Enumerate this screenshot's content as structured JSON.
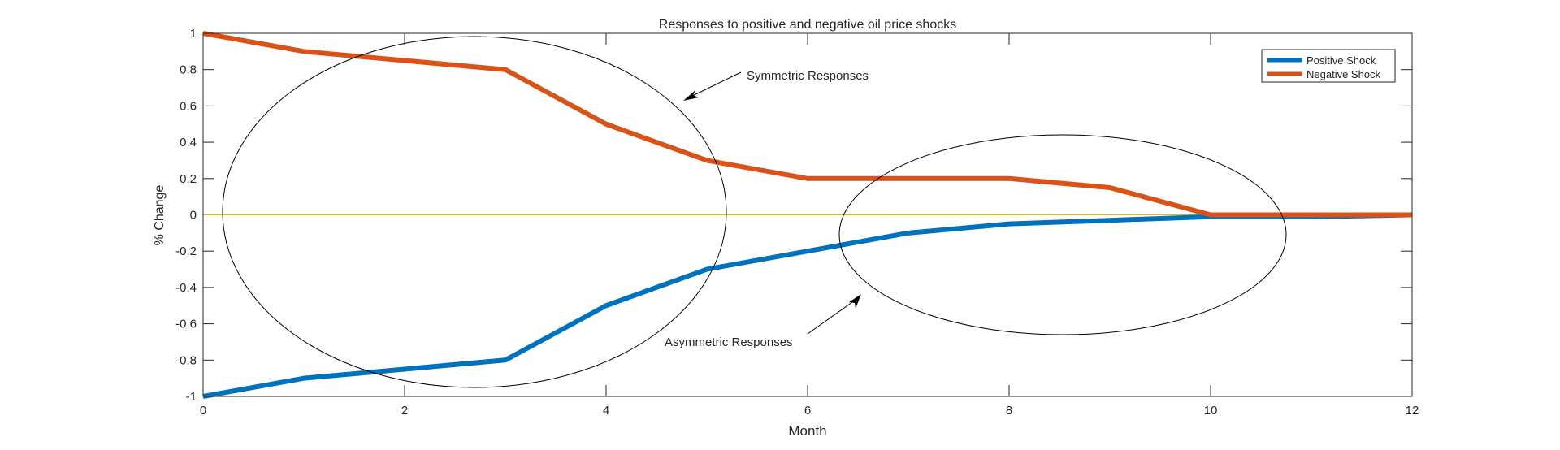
{
  "chart_data": {
    "type": "line",
    "title": "Responses to positive and negative oil price shocks",
    "xlabel": "Month",
    "ylabel": "% Change",
    "xlim": [
      0,
      12
    ],
    "ylim": [
      -1,
      1
    ],
    "xticks": [
      0,
      2,
      4,
      6,
      8,
      10,
      12
    ],
    "yticks": [
      -1,
      -0.8,
      -0.6,
      -0.4,
      -0.2,
      0,
      0.2,
      0.4,
      0.6,
      0.8,
      1
    ],
    "grid": false,
    "legend_position": "top-right",
    "x": [
      0,
      1,
      2,
      3,
      4,
      5,
      6,
      7,
      8,
      9,
      10,
      11,
      12
    ],
    "series": [
      {
        "name": "Positive Shock",
        "color": "#0072BD",
        "values": [
          -1,
          -0.9,
          -0.85,
          -0.8,
          -0.5,
          -0.3,
          -0.2,
          -0.1,
          -0.05,
          -0.03,
          -0.01,
          -0.01,
          0
        ]
      },
      {
        "name": "Negative Shock",
        "color": "#D95319",
        "values": [
          1,
          0.9,
          0.85,
          0.8,
          0.5,
          0.3,
          0.2,
          0.2,
          0.2,
          0.15,
          0,
          0,
          0
        ]
      }
    ],
    "reference_line": {
      "y": 0,
      "color": "#EDB120"
    },
    "annotations": [
      {
        "text": "Symmetric Responses"
      },
      {
        "text": "Asymmetric Responses"
      }
    ]
  }
}
